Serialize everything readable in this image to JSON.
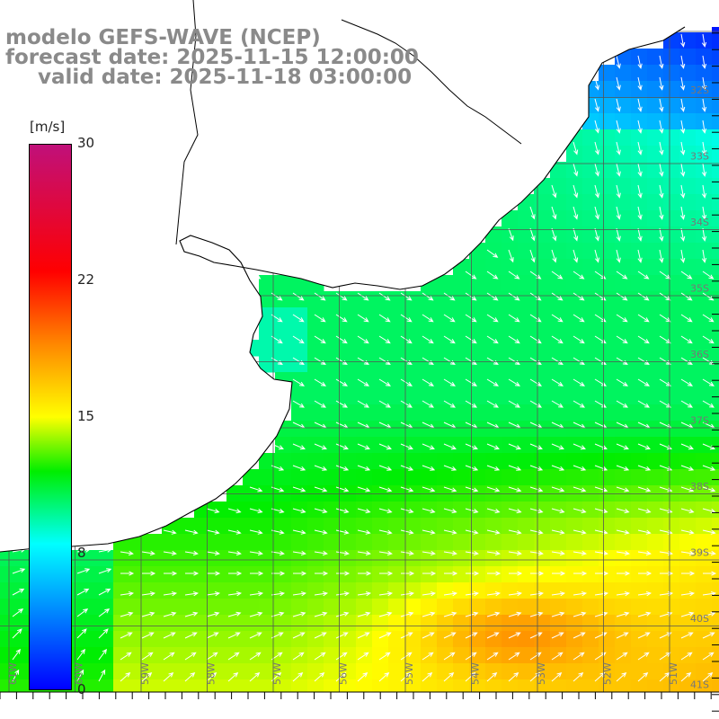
{
  "title": {
    "model": "modelo GEFS-WAVE (NCEP)",
    "forecast": "forecast date: 2025-11-15 12:00:00",
    "valid": "valid date: 2025-11-18 03:00:00"
  },
  "colorbar": {
    "unit": "[m/s]",
    "ticks": [
      "30",
      "22",
      "15",
      "8",
      "0"
    ],
    "range": [
      0,
      30
    ],
    "stops": [
      {
        "value": 0,
        "color": "#0000ff"
      },
      {
        "value": 8,
        "color": "#00ffff"
      },
      {
        "value": 12,
        "color": "#00ee00"
      },
      {
        "value": 15,
        "color": "#ffff00"
      },
      {
        "value": 19,
        "color": "#ff8800"
      },
      {
        "value": 23,
        "color": "#ff0000"
      },
      {
        "value": 30,
        "color": "#c0107a"
      }
    ]
  },
  "map": {
    "lat_labels": [
      "32S",
      "33S",
      "34S",
      "35S",
      "36S",
      "37S",
      "38S",
      "39S",
      "40S",
      "41S"
    ],
    "lon_labels": [
      "61W",
      "60W",
      "59W",
      "58W",
      "57W",
      "56W",
      "55W",
      "54W",
      "53W",
      "52W",
      "51W"
    ],
    "field": "wind speed",
    "arrow_color": "#ffffff",
    "coast_color": "#000000",
    "grid_color": "#555555"
  }
}
